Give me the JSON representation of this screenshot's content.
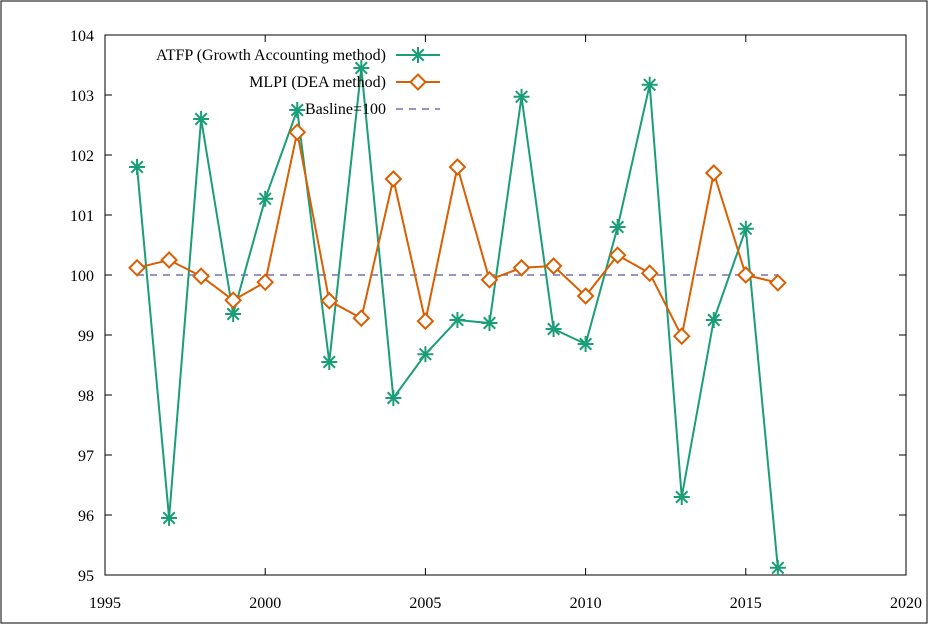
{
  "chart_data": {
    "type": "line",
    "title": "",
    "xlabel": "",
    "ylabel": "",
    "xlim": [
      1995,
      2020
    ],
    "ylim": [
      95,
      104
    ],
    "xticks": [
      1995,
      2000,
      2005,
      2010,
      2015,
      2020
    ],
    "yticks": [
      95,
      96,
      97,
      98,
      99,
      100,
      101,
      102,
      103,
      104
    ],
    "grid": false,
    "legend_position": "top-left",
    "series": [
      {
        "name": "ATFP (Growth Accounting method)",
        "color": "#1a9e77",
        "marker": "star",
        "x": [
          1996,
          1997,
          1998,
          1999,
          2000,
          2001,
          2002,
          2003,
          2004,
          2005,
          2006,
          2007,
          2008,
          2009,
          2010,
          2011,
          2012,
          2013,
          2014,
          2015,
          2016
        ],
        "y": [
          101.8,
          95.95,
          102.6,
          99.35,
          101.27,
          102.75,
          98.55,
          103.45,
          97.95,
          98.68,
          99.25,
          99.2,
          102.97,
          99.1,
          98.85,
          100.8,
          103.17,
          96.3,
          99.25,
          100.77,
          95.12
        ]
      },
      {
        "name": "MLPI (DEA method)",
        "color": "#d95f02",
        "marker": "diamond",
        "x": [
          1996,
          1997,
          1998,
          1999,
          2000,
          2001,
          2002,
          2003,
          2004,
          2005,
          2006,
          2007,
          2008,
          2009,
          2010,
          2011,
          2012,
          2013,
          2014,
          2015,
          2016
        ],
        "y": [
          100.12,
          100.25,
          99.98,
          99.58,
          99.88,
          102.38,
          99.57,
          99.28,
          101.6,
          99.23,
          101.8,
          99.92,
          100.12,
          100.15,
          99.65,
          100.33,
          100.03,
          98.98,
          101.7,
          100.0,
          99.87
        ]
      },
      {
        "name": "Basline=100",
        "color": "#7570b3",
        "marker": "none",
        "dashed": true,
        "x": [
          1996,
          2016
        ],
        "y": [
          100,
          100
        ]
      }
    ]
  }
}
